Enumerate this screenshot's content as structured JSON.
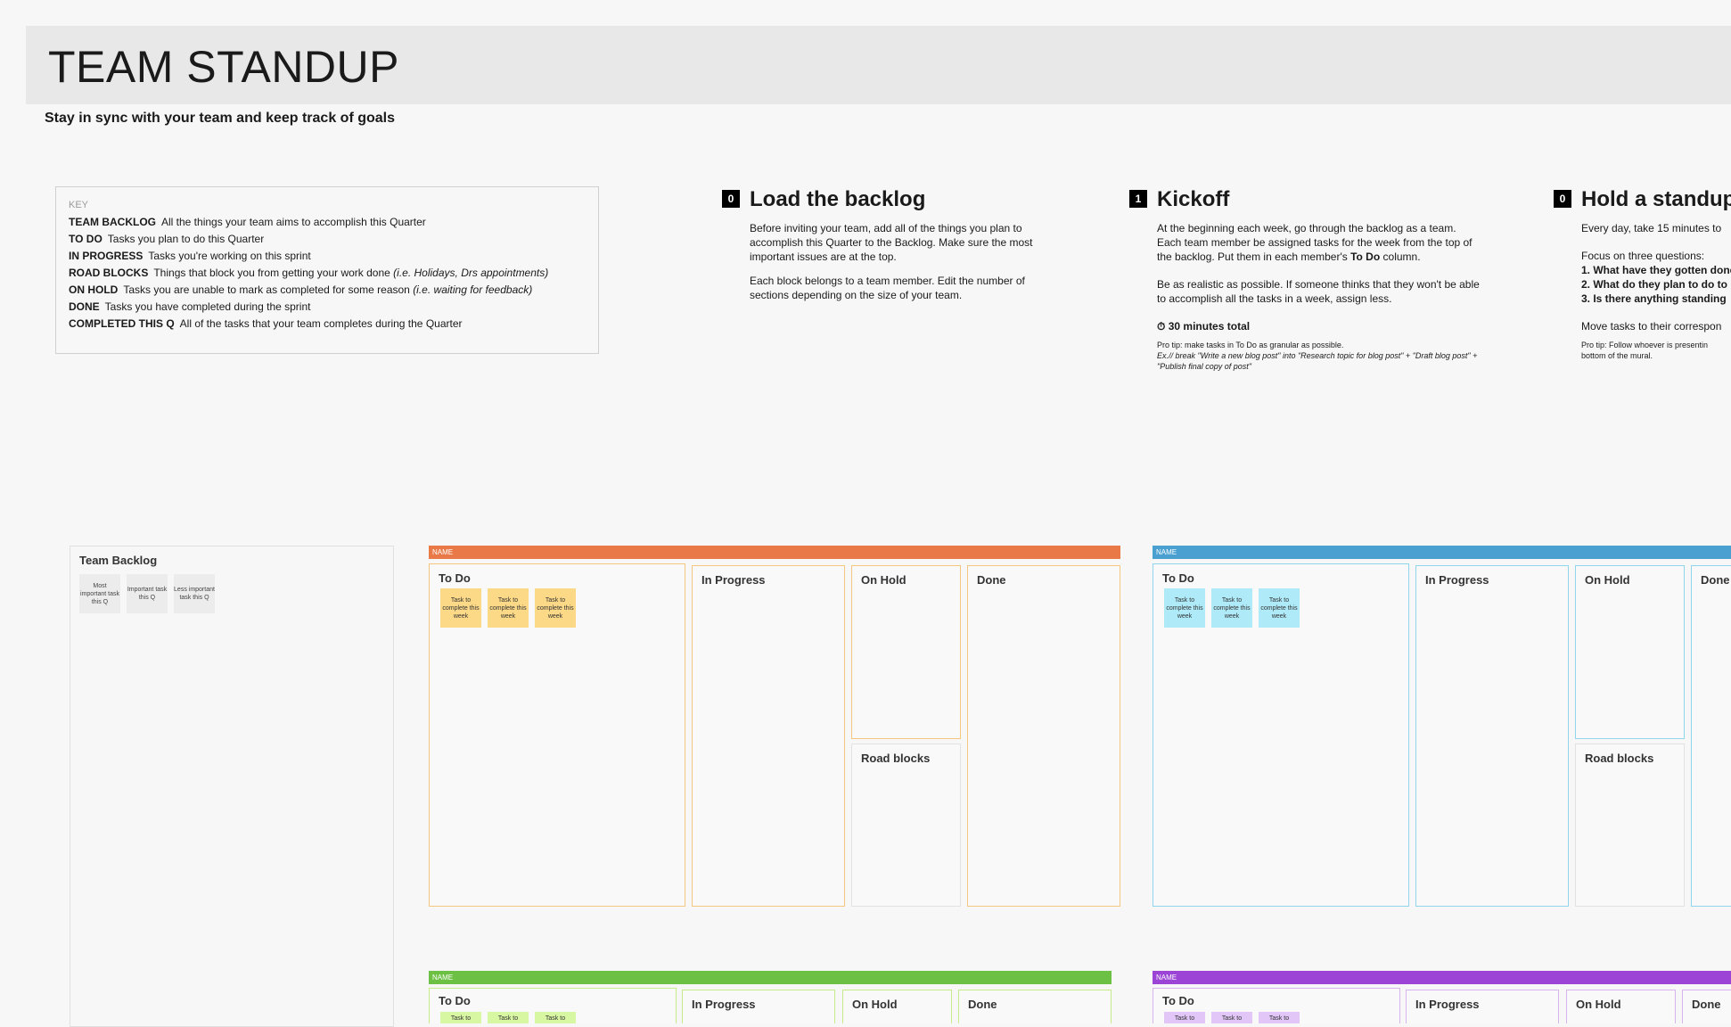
{
  "header": {
    "title": "TEAM STANDUP",
    "subtitle": "Stay in sync with your team and keep track of goals"
  },
  "key": {
    "heading": "KEY",
    "rows": [
      {
        "term": "TEAM BACKLOG",
        "desc": "All the things your team aims to accomplish this Quarter",
        "note": ""
      },
      {
        "term": "TO DO",
        "desc": "Tasks you plan to do this Quarter",
        "note": ""
      },
      {
        "term": "IN PROGRESS",
        "desc": "Tasks you're working on this sprint",
        "note": ""
      },
      {
        "term": "ROAD BLOCKS",
        "desc": "Things that block you from getting your work done",
        "note": "(i.e. Holidays, Drs appointments)"
      },
      {
        "term": "ON HOLD",
        "desc": "Tasks you are unable to mark as completed for some reason",
        "note": "(i.e. waiting for feedback)"
      },
      {
        "term": "DONE",
        "desc": "Tasks you have completed during the sprint",
        "note": ""
      },
      {
        "term": "COMPLETED THIS Q",
        "desc": "All of the tasks that your team completes during the Quarter",
        "note": ""
      }
    ]
  },
  "steps": {
    "load": {
      "badge": "0",
      "title": "Load the backlog",
      "p1": "Before inviting your team, add all of the things you plan to accomplish this Quarter to the Backlog. Make sure the most important issues are at the top.",
      "p2": "Each block belongs to a team member. Edit the number of sections depending on the size of your team."
    },
    "kickoff": {
      "badge": "1",
      "title": "Kickoff",
      "p1_a": "At the beginning each week, go through the backlog as a team. Each team member be assigned tasks for the week from the top of the backlog. Put them in each member's ",
      "p1_b": "To Do",
      "p1_c": " column.",
      "p2": "Be as realistic as possible. If someone thinks that they won't be able to accomplish all the tasks in a week, assign less.",
      "timer": "30 minutes total",
      "tip1": "Pro tip: make tasks in To Do as granular as possible.",
      "tip2": "Ex.// break \"Write a new blog post\" into \"Research topic for blog post\" + \"Draft blog post\" + \"Publish final copy of post\""
    },
    "standup": {
      "badge": "0",
      "title": "Hold a standup",
      "p1": "Every day, take 15 minutes to",
      "p2": "Focus on three questions:",
      "q1": "1. What have they gotten done",
      "q2": "2. What do they plan to do to",
      "q3": "3. Is there anything standing",
      "p3": "Move tasks to their correspon",
      "tip1": "Pro tip: Follow whoever is presentin",
      "tip2": "bottom of the mural."
    }
  },
  "backlog": {
    "title": "Team Backlog",
    "stickies": [
      "Most important task this Q",
      "Important task this Q",
      "Less important task this Q"
    ]
  },
  "boards": {
    "orange": {
      "name": "NAME",
      "color": "#e97a47",
      "border": "#f5c77e",
      "sticky": "#fcd987"
    },
    "blue": {
      "name": "NAME",
      "color": "#4aa0d1",
      "border": "#8fd6ec",
      "sticky": "#aeeaf8"
    },
    "green": {
      "name": "NAME",
      "color": "#6cc144",
      "border": "#c6ec8a",
      "sticky": "#d8f7a2"
    },
    "purple": {
      "name": "NAME",
      "color": "#9b44d6",
      "border": "#d7b4ef",
      "sticky": "#e1c6f7"
    }
  },
  "columns": {
    "todo": "To Do",
    "inprogress": "In Progress",
    "onhold": "On Hold",
    "roadblocks": "Road blocks",
    "done": "Done"
  },
  "task_sticky": "Task to complete this week",
  "task_sticky_short": "Task to"
}
